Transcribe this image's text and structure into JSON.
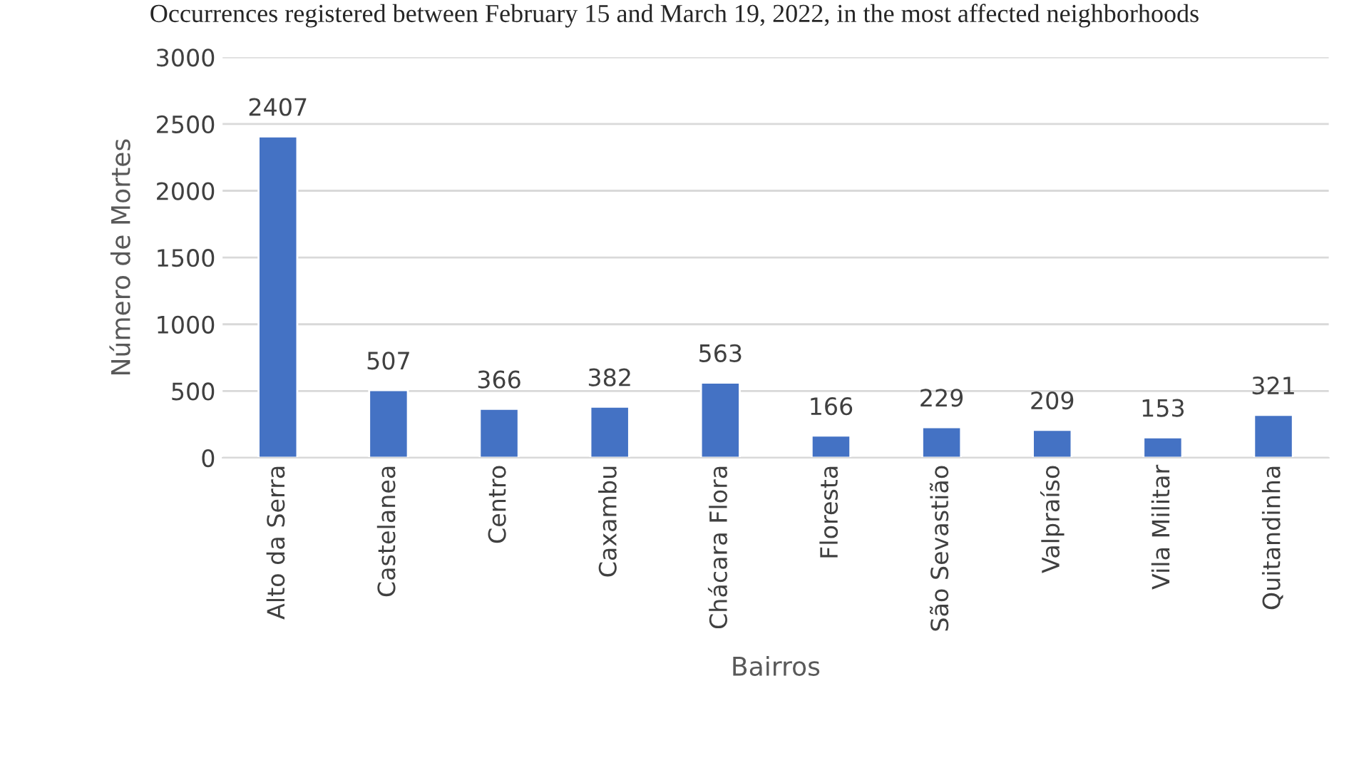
{
  "chart_data": {
    "type": "bar",
    "title": "Occurrences registered between February 15 and March 19, 2022, in the most affected neighborhoods",
    "xlabel": "Bairros",
    "ylabel": "Número de Mortes",
    "categories": [
      "Alto da Serra",
      "Castelanea",
      "Centro",
      "Caxambu",
      "Chácara Flora",
      "Floresta",
      "São Sevastião",
      "Valpraíso",
      "Vila Militar",
      "Quitandinha"
    ],
    "values": [
      2407,
      507,
      366,
      382,
      563,
      166,
      229,
      209,
      153,
      321
    ],
    "color": "#4472c4",
    "ylim": [
      0,
      3000
    ],
    "yticks": [
      0,
      500,
      1000,
      1500,
      2000,
      2500,
      3000
    ],
    "grid": "y",
    "data_labels": true
  }
}
